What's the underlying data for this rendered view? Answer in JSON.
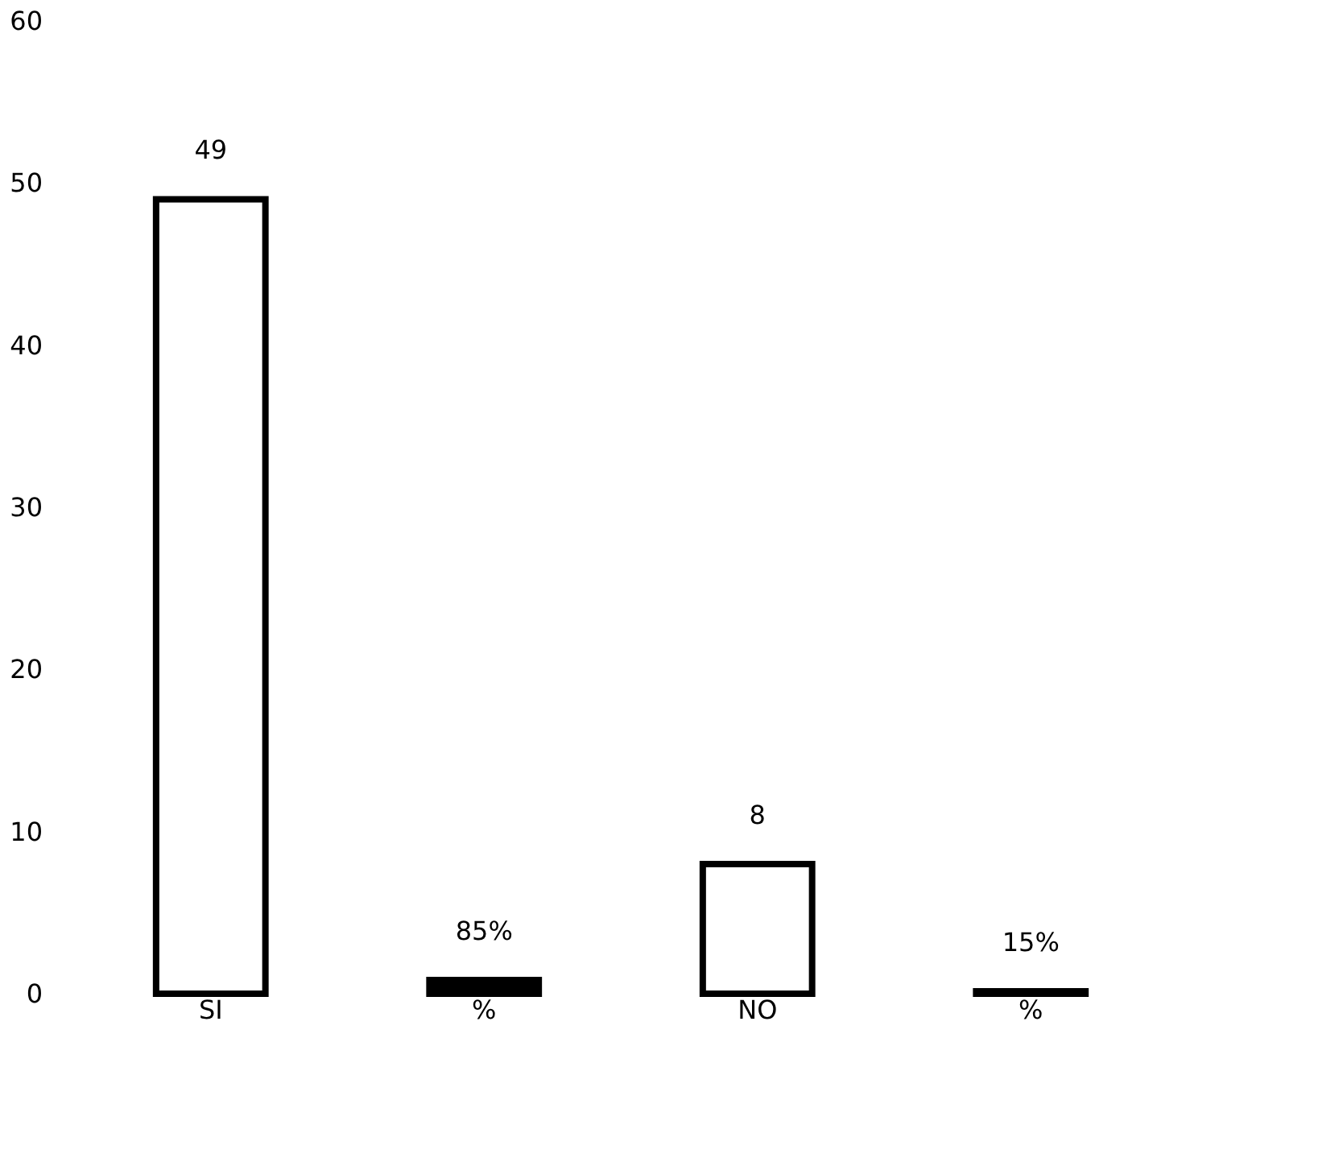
{
  "chart_data": {
    "type": "bar",
    "categories": [
      "SI",
      "%",
      "NO",
      "%"
    ],
    "values": [
      49,
      0.85,
      8,
      0.15
    ],
    "value_labels": [
      "49",
      "85%",
      "8",
      "15%"
    ],
    "colors": [
      "#ffffff",
      "#000000",
      "#ffffff",
      "#000000"
    ],
    "ylim": [
      0,
      60
    ],
    "yticks": [
      0,
      10,
      20,
      30,
      40,
      50,
      60
    ],
    "grid": false
  }
}
